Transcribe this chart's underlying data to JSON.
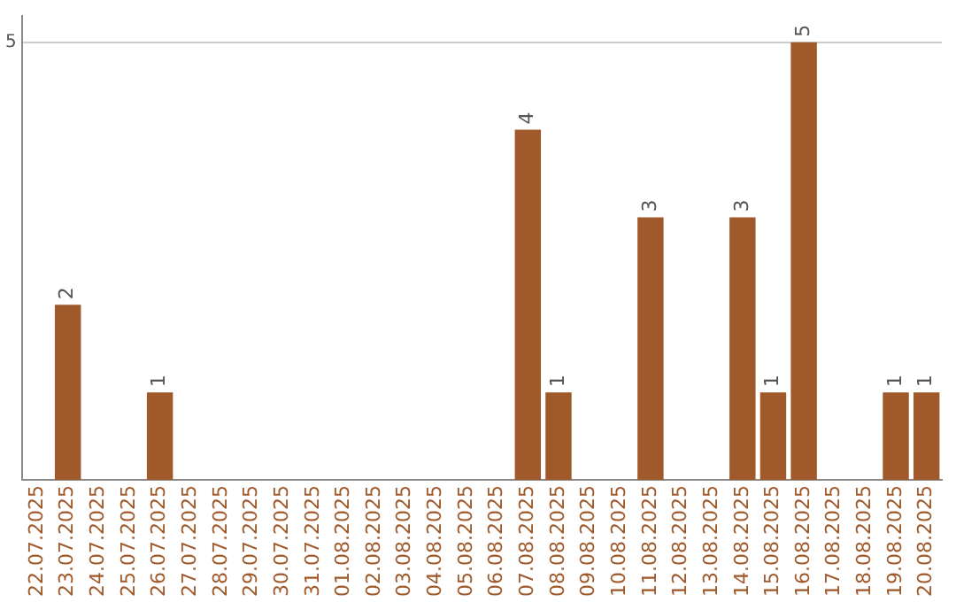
{
  "chart_data": {
    "type": "bar",
    "categories": [
      "22.07.2025",
      "23.07.2025",
      "24.07.2025",
      "25.07.2025",
      "26.07.2025",
      "27.07.2025",
      "28.07.2025",
      "29.07.2025",
      "30.07.2025",
      "31.07.2025",
      "01.08.2025",
      "02.08.2025",
      "03.08.2025",
      "04.08.2025",
      "05.08.2025",
      "06.08.2025",
      "07.08.2025",
      "08.08.2025",
      "09.08.2025",
      "10.08.2025",
      "11.08.2025",
      "12.08.2025",
      "13.08.2025",
      "14.08.2025",
      "15.08.2025",
      "16.08.2025",
      "17.08.2025",
      "18.08.2025",
      "19.08.2025",
      "20.08.2025"
    ],
    "values": [
      0,
      2,
      0,
      0,
      1,
      0,
      0,
      0,
      0,
      0,
      0,
      0,
      0,
      0,
      0,
      0,
      4,
      1,
      0,
      0,
      3,
      0,
      0,
      3,
      1,
      5,
      0,
      0,
      1,
      1
    ],
    "value_labels": [
      null,
      "2",
      null,
      null,
      "1",
      null,
      null,
      null,
      null,
      null,
      null,
      null,
      null,
      null,
      null,
      null,
      "4",
      "1",
      null,
      null,
      "3",
      null,
      null,
      "3",
      "1",
      "5",
      null,
      null,
      "1",
      "1"
    ],
    "color": "#a0592a",
    "ylim": [
      0,
      5.3
    ],
    "yticks": [
      5
    ],
    "grid": "y",
    "legend": false
  }
}
